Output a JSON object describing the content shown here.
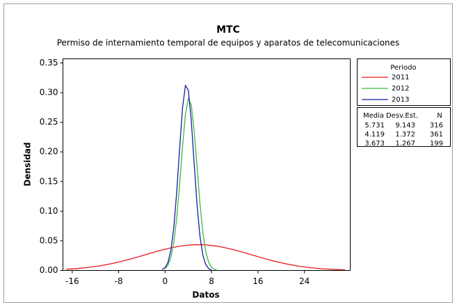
{
  "chart_data": {
    "type": "line",
    "title": "MTC",
    "subtitle": "Permiso de internamiento temporal de equipos y aparatos de telecomunicaciones",
    "x_label": "Datos",
    "y_label": "Densidad",
    "xlim": [
      -17.6,
      31.9
    ],
    "ylim": [
      0,
      0.357
    ],
    "xticks": [
      -16,
      -8,
      0,
      8,
      16,
      24
    ],
    "yticks": [
      {
        "value": 0,
        "label": "0.00"
      },
      {
        "value": 0.05,
        "label": "0.05"
      },
      {
        "value": 0.1,
        "label": "0.10"
      },
      {
        "value": 0.15,
        "label": "0.15"
      },
      {
        "value": 0.2,
        "label": "0.20"
      },
      {
        "value": 0.25,
        "label": "0.25"
      },
      {
        "value": 0.3,
        "label": "0.30"
      },
      {
        "value": 0.35,
        "label": "0.35"
      }
    ],
    "legend_title": "Periodo",
    "series": [
      {
        "name": "2011",
        "color": "#e8191c",
        "x": [
          -17,
          -15,
          -13,
          -11,
          -9,
          -7,
          -5,
          -3,
          -1,
          1,
          3,
          5,
          7,
          9,
          11,
          13,
          15,
          17,
          19,
          21,
          23,
          25,
          27,
          29,
          31
        ],
        "values": [
          0.002,
          0.0033,
          0.0054,
          0.0082,
          0.0119,
          0.0166,
          0.0219,
          0.0277,
          0.0333,
          0.0382,
          0.0417,
          0.0435,
          0.0432,
          0.0409,
          0.037,
          0.0318,
          0.0261,
          0.0204,
          0.0152,
          0.0108,
          0.0073,
          0.0047,
          0.0029,
          0.0017,
          0.001
        ]
      },
      {
        "name": "2012",
        "color": "#3cb83c",
        "x": [
          0,
          0.5,
          1,
          1.5,
          2,
          2.5,
          3,
          3.5,
          4,
          4.5,
          5,
          5.5,
          6,
          6.5,
          7,
          7.5,
          8,
          8.5,
          9
        ],
        "values": [
          0.0032,
          0.009,
          0.022,
          0.047,
          0.0882,
          0.145,
          0.2085,
          0.2627,
          0.2897,
          0.2798,
          0.2366,
          0.1752,
          0.1136,
          0.0645,
          0.0321,
          0.014,
          0.0053,
          0.0018,
          0.0005
        ]
      },
      {
        "name": "2013",
        "color": "#1a1aa6",
        "x": [
          -0.5,
          0,
          0.5,
          1,
          1.5,
          2,
          2.5,
          3,
          3.5,
          4,
          4.5,
          5,
          5.5,
          6,
          6.5,
          7,
          7.5,
          8
        ],
        "values": [
          0.0014,
          0.0047,
          0.0137,
          0.034,
          0.0723,
          0.1317,
          0.2051,
          0.2735,
          0.312,
          0.3046,
          0.2545,
          0.182,
          0.1113,
          0.0583,
          0.0261,
          0.01,
          0.0033,
          0.0009
        ]
      }
    ],
    "stats_table": {
      "columns": [
        "Media",
        "Desv.Est.",
        "N"
      ],
      "rows": [
        [
          "5.731",
          "9.143",
          "316"
        ],
        [
          "4.119",
          "1.372",
          "361"
        ],
        [
          "3.673",
          "1.267",
          "199"
        ]
      ]
    }
  }
}
